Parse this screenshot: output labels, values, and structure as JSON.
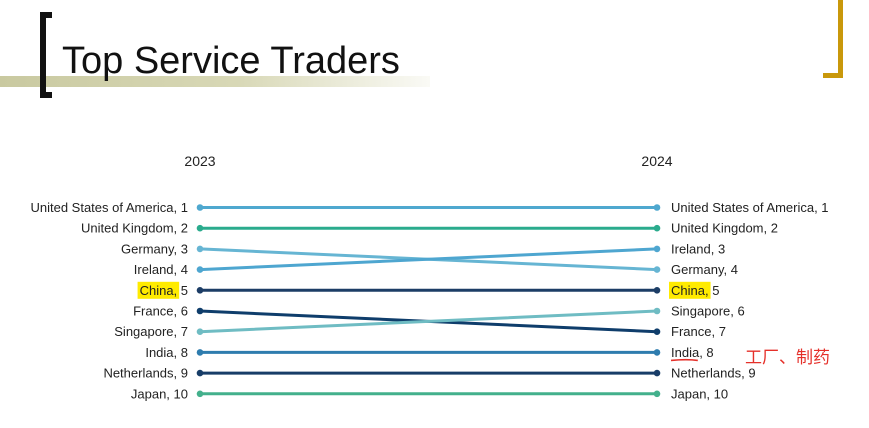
{
  "slide": {
    "title": "Top Service Traders",
    "annotation": "工厂、制药",
    "bracket_left_color": "#111111",
    "bracket_right_color": "#c9980b",
    "highlight_color": "#ffeb00",
    "underline_color": "#e5302a"
  },
  "chart_data": {
    "type": "line",
    "title": "",
    "xlabel": "",
    "ylabel": "",
    "x": [
      "2023",
      "2024"
    ],
    "rank_axis_reversed": true,
    "ylim": [
      1,
      10
    ],
    "grid": false,
    "legend": "none",
    "series": [
      {
        "name": "United States of America",
        "values": [
          1,
          1
        ],
        "color": "#4fa8cf"
      },
      {
        "name": "United Kingdom",
        "values": [
          2,
          2
        ],
        "color": "#2aab8d"
      },
      {
        "name": "Germany",
        "values": [
          3,
          4
        ],
        "color": "#66b5d3"
      },
      {
        "name": "Ireland",
        "values": [
          4,
          3
        ],
        "color": "#4ea6d0"
      },
      {
        "name": "China",
        "values": [
          5,
          5
        ],
        "color": "#1c3d66",
        "highlight": true
      },
      {
        "name": "France",
        "values": [
          6,
          7
        ],
        "color": "#0f3d6b"
      },
      {
        "name": "Singapore",
        "values": [
          7,
          6
        ],
        "color": "#6fbcc3"
      },
      {
        "name": "India",
        "values": [
          8,
          8
        ],
        "color": "#2e7cae",
        "underline_right": true
      },
      {
        "name": "Netherlands",
        "values": [
          9,
          9
        ],
        "color": "#183d68"
      },
      {
        "name": "Japan",
        "values": [
          10,
          10
        ],
        "color": "#43b08c"
      }
    ]
  }
}
